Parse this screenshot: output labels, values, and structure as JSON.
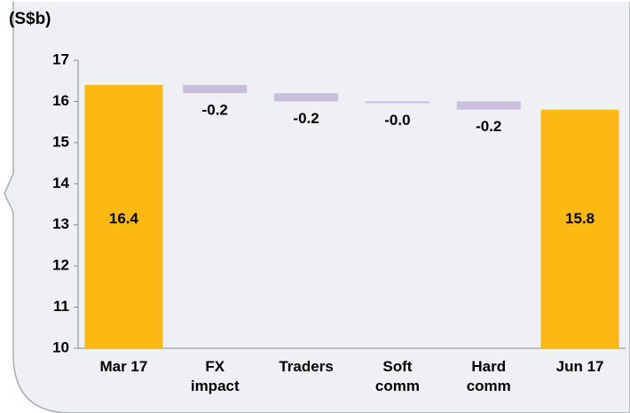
{
  "chart_data": {
    "type": "waterfall",
    "title": "(S$b)",
    "categories": [
      "Mar 17",
      "FX impact",
      "Traders",
      "Soft comm",
      "Hard comm",
      "Jun 17"
    ],
    "values": [
      16.4,
      -0.2,
      -0.2,
      0,
      -0.2,
      15.8
    ],
    "value_labels": [
      "16.4",
      "-0.2",
      "-0.2",
      "-0.0",
      "-0.2",
      "15.8"
    ],
    "color": "#fdb913",
    "delta_color": "#c9bedc",
    "ylim": [
      10,
      17
    ],
    "yticks": [
      10,
      11,
      12,
      13,
      14,
      15,
      16,
      17
    ],
    "grid": false
  }
}
